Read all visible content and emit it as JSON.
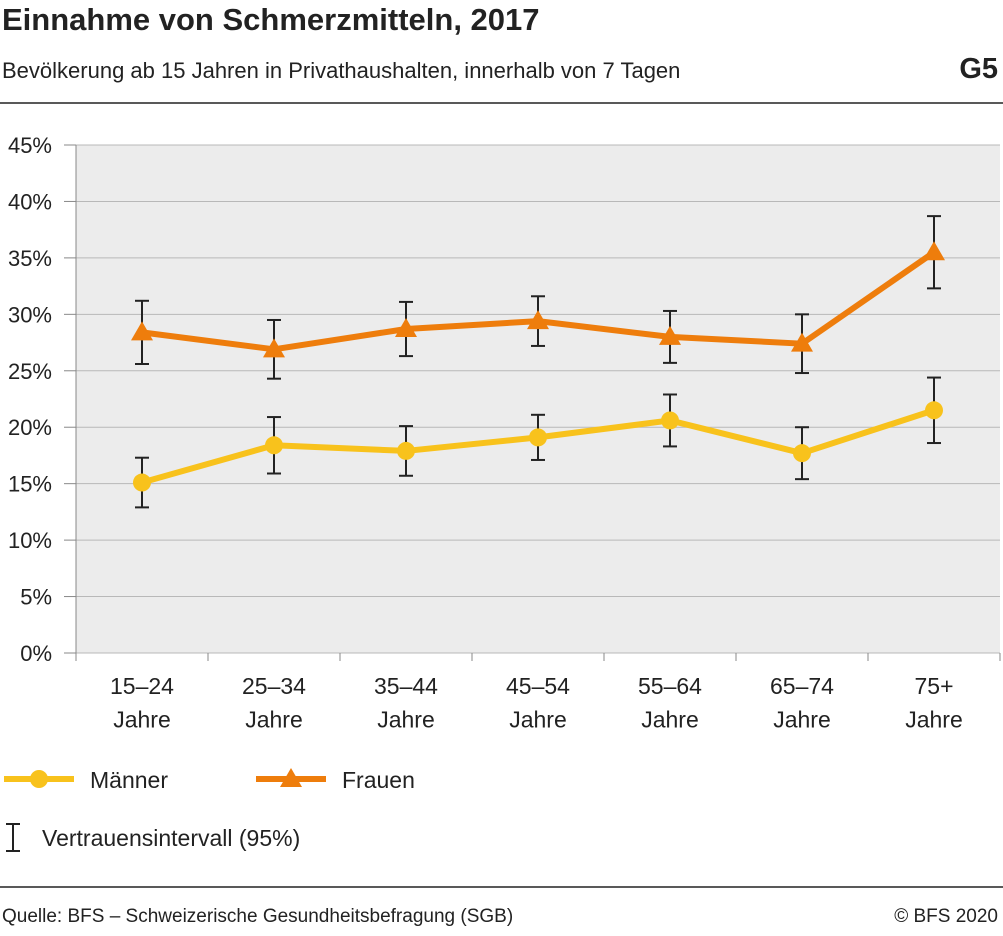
{
  "chart_data": {
    "type": "line",
    "title": "Einnahme von Schmerzmitteln, 2017",
    "subtitle": "Bevölkerung ab 15 Jahren in Privathaushalten, innerhalb von 7 Tagen",
    "chart_id": "G5",
    "categories": [
      "15–24\nJahre",
      "25–34\nJahre",
      "35–44\nJahre",
      "45–54\nJahre",
      "55–64\nJahre",
      "65–74\nJahre",
      "75+\nJahre"
    ],
    "series": [
      {
        "name": "Männer",
        "color": "#f8c21c",
        "marker": "circle",
        "values": [
          15.1,
          18.4,
          17.9,
          19.1,
          20.6,
          17.7,
          21.5
        ],
        "errors": [
          2.2,
          2.5,
          2.2,
          2.0,
          2.3,
          2.3,
          2.9
        ]
      },
      {
        "name": "Frauen",
        "color": "#ee7d0c",
        "marker": "triangle",
        "values": [
          28.4,
          26.9,
          28.7,
          29.4,
          28.0,
          27.4,
          35.5
        ],
        "errors": [
          2.8,
          2.6,
          2.4,
          2.2,
          2.3,
          2.6,
          3.2
        ]
      }
    ],
    "ylim": [
      0,
      45
    ],
    "yticks": [
      {
        "value": 0,
        "label": "0%"
      },
      {
        "value": 5,
        "label": "5%"
      },
      {
        "value": 10,
        "label": "10%"
      },
      {
        "value": 15,
        "label": "15%"
      },
      {
        "value": 20,
        "label": "20%"
      },
      {
        "value": 25,
        "label": "25%"
      },
      {
        "value": 30,
        "label": "30%"
      },
      {
        "value": 35,
        "label": "35%"
      },
      {
        "value": 40,
        "label": "40%"
      },
      {
        "value": 45,
        "label": "45%"
      }
    ],
    "grid": true,
    "ci_label": "Vertrauensintervall (95%)",
    "source": "Quelle: BFS – Schweizerische Gesundheitsbefragung (SGB)",
    "copyright": "© BFS 2020"
  }
}
